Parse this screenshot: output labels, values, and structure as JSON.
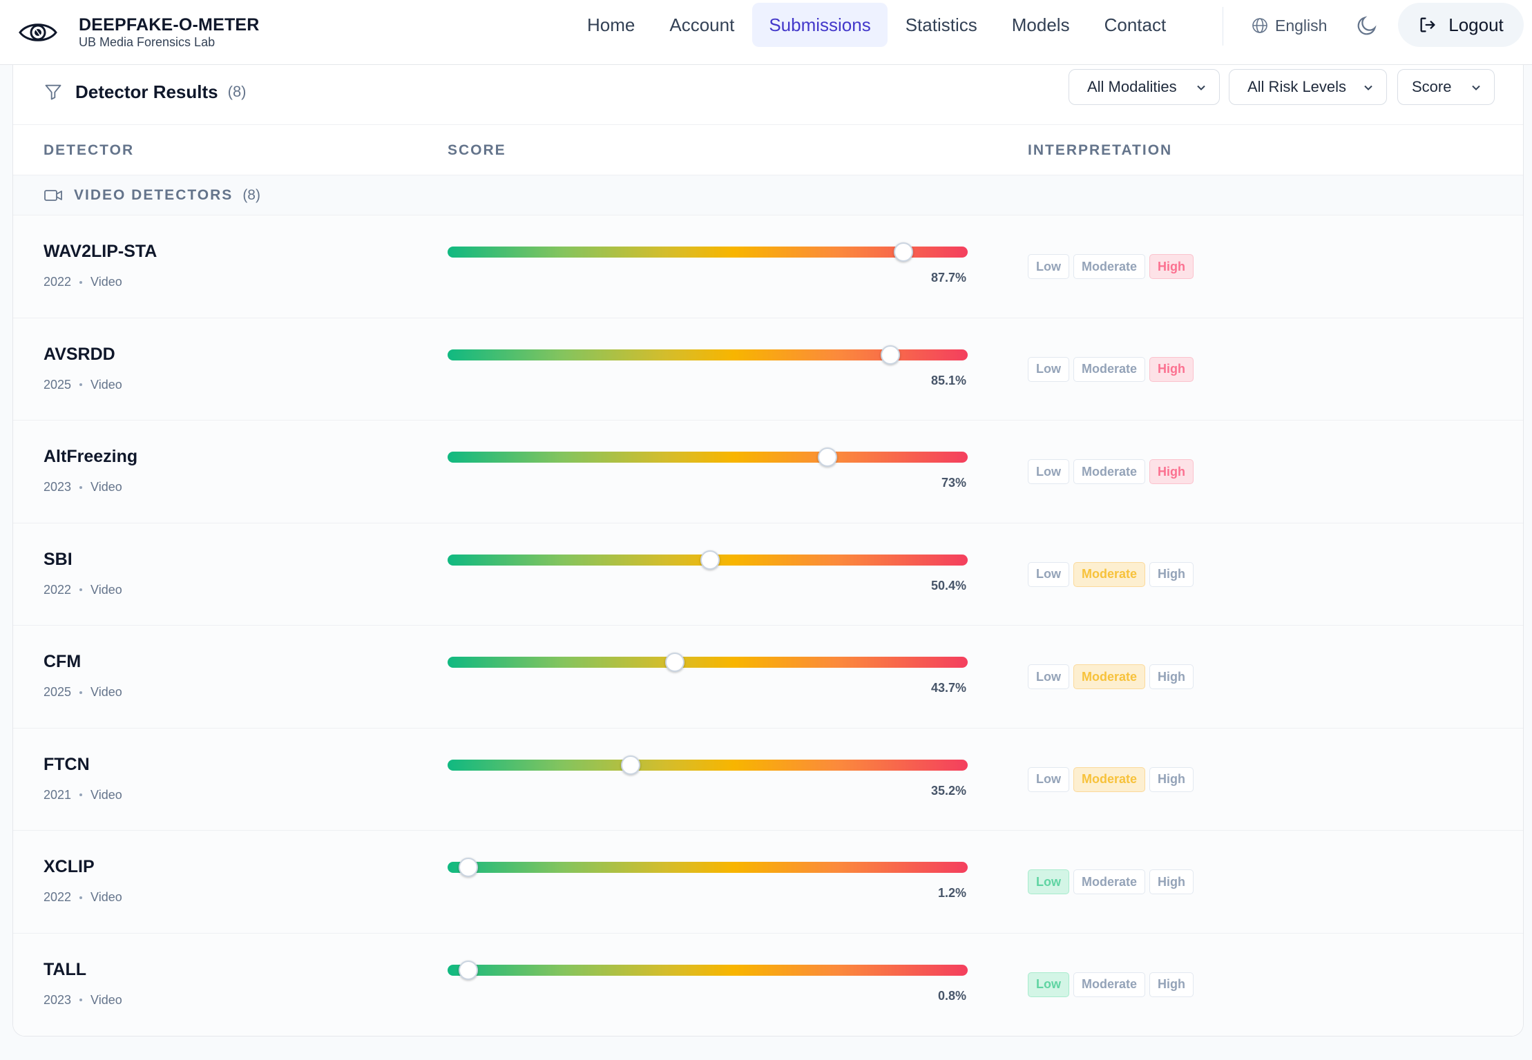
{
  "brand": {
    "title": "DEEPFAKE-O-METER",
    "subtitle": "UB Media Forensics Lab"
  },
  "nav": {
    "items": [
      {
        "label": "Home",
        "active": false
      },
      {
        "label": "Account",
        "active": false
      },
      {
        "label": "Submissions",
        "active": true
      },
      {
        "label": "Statistics",
        "active": false
      },
      {
        "label": "Models",
        "active": false
      },
      {
        "label": "Contact",
        "active": false
      }
    ],
    "language": "English",
    "logout_label": "Logout"
  },
  "results": {
    "title": "Detector Results",
    "count": "(8)",
    "filters": {
      "modality": "All Modalities",
      "risk": "All Risk Levels",
      "sort": "Score"
    },
    "columns": {
      "detector": "DETECTOR",
      "score": "SCORE",
      "interpretation": "INTERPRETATION"
    },
    "group": {
      "label": "VIDEO DETECTORS",
      "count": "(8)"
    },
    "levels": [
      "Low",
      "Moderate",
      "High"
    ],
    "rows": [
      {
        "name": "WAV2LIP-STA",
        "year": "2022",
        "modality": "Video",
        "score": 87.7,
        "score_label": "87.7%",
        "risk": "High"
      },
      {
        "name": "AVSRDD",
        "year": "2025",
        "modality": "Video",
        "score": 85.1,
        "score_label": "85.1%",
        "risk": "High"
      },
      {
        "name": "AltFreezing",
        "year": "2023",
        "modality": "Video",
        "score": 73,
        "score_label": "73%",
        "risk": "High"
      },
      {
        "name": "SBI",
        "year": "2022",
        "modality": "Video",
        "score": 50.4,
        "score_label": "50.4%",
        "risk": "Moderate"
      },
      {
        "name": "CFM",
        "year": "2025",
        "modality": "Video",
        "score": 43.7,
        "score_label": "43.7%",
        "risk": "Moderate"
      },
      {
        "name": "FTCN",
        "year": "2021",
        "modality": "Video",
        "score": 35.2,
        "score_label": "35.2%",
        "risk": "Moderate"
      },
      {
        "name": "XCLIP",
        "year": "2022",
        "modality": "Video",
        "score": 1.2,
        "score_label": "1.2%",
        "risk": "Low"
      },
      {
        "name": "TALL",
        "year": "2023",
        "modality": "Video",
        "score": 0.8,
        "score_label": "0.8%",
        "risk": "Low"
      }
    ]
  },
  "colors": {
    "accent": "#4338ca",
    "high": "#fb7190",
    "moderate": "#f7c23b",
    "low": "#5fd4a2"
  },
  "icons": [
    "eye-logo-icon",
    "globe-icon",
    "moon-icon",
    "logout-icon",
    "filter-icon",
    "chevron-down-icon",
    "video-camera-icon"
  ]
}
